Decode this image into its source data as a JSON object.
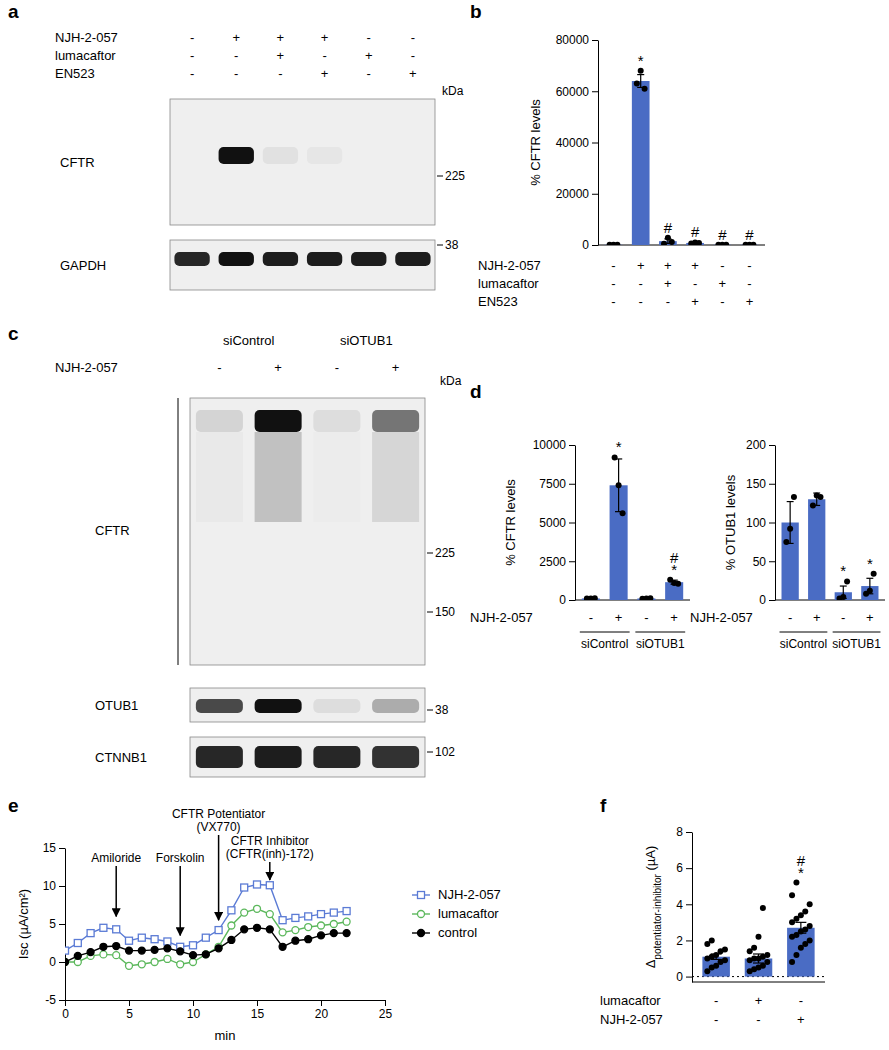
{
  "chart_data": [
    {
      "type": "blot",
      "panel": "a",
      "treatments": [
        {
          "name": "NJH-2-057",
          "signs": [
            "-",
            "+",
            "+",
            "+",
            "-",
            "-"
          ]
        },
        {
          "name": "lumacaftor",
          "signs": [
            "-",
            "-",
            "+",
            "-",
            "+",
            "-"
          ]
        },
        {
          "name": "EN523",
          "signs": [
            "-",
            "-",
            "-",
            "+",
            "-",
            "+"
          ]
        }
      ],
      "marker_unit": "kDa",
      "blots": [
        {
          "name": "CFTR",
          "intensities": [
            0,
            1,
            0.06,
            0.04,
            0,
            0
          ],
          "markers": [
            225
          ]
        },
        {
          "name": "GAPDH",
          "intensities": [
            0.9,
            1,
            0.95,
            0.95,
            0.95,
            0.95
          ],
          "markers": [
            38
          ]
        }
      ]
    },
    {
      "type": "bar",
      "panel": "b",
      "y_label": "% CFTR levels",
      "color": "#4a6cc4",
      "treatments": [
        {
          "name": "NJH-2-057",
          "signs": [
            "-",
            "+",
            "+",
            "+",
            "-",
            "-"
          ]
        },
        {
          "name": "lumacaftor",
          "signs": [
            "-",
            "-",
            "+",
            "-",
            "+",
            "-"
          ]
        },
        {
          "name": "EN523",
          "signs": [
            "-",
            "-",
            "-",
            "+",
            "-",
            "+"
          ]
        }
      ],
      "values": [
        100,
        64000,
        1500,
        800,
        100,
        100
      ],
      "errors": [
        50,
        2500,
        900,
        300,
        50,
        50
      ],
      "points": [
        [
          100,
          100,
          100
        ],
        [
          63000,
          68000,
          61000
        ],
        [
          500,
          2800,
          1200
        ],
        [
          600,
          1000,
          800
        ],
        [
          100,
          100,
          100
        ],
        [
          100,
          100,
          100
        ]
      ],
      "annotations": [
        null,
        [
          "*"
        ],
        [
          "#"
        ],
        [
          "#"
        ],
        [
          "#"
        ],
        [
          "#"
        ]
      ],
      "ylim": [
        0,
        80000
      ],
      "yticks": [
        0,
        20000,
        40000,
        60000,
        80000
      ]
    },
    {
      "type": "blot",
      "panel": "c",
      "groups": [
        "siControl",
        "siControl",
        "siOTUB1",
        "siOTUB1"
      ],
      "treatments": [
        {
          "name": "NJH-2-057",
          "signs": [
            "-",
            "+",
            "-",
            "+"
          ]
        }
      ],
      "marker_unit": "kDa",
      "blots": [
        {
          "name": "CFTR",
          "intensities": [
            0.12,
            1,
            0.08,
            0.55
          ],
          "markers": [
            225,
            150
          ]
        },
        {
          "name": "OTUB1",
          "intensities": [
            0.75,
            1,
            0.08,
            0.3
          ],
          "markers": [
            38
          ]
        },
        {
          "name": "CTNNB1",
          "intensities": [
            0.9,
            0.95,
            0.9,
            0.85
          ],
          "markers": [
            102
          ]
        }
      ]
    },
    {
      "type": "bar",
      "panel": "d",
      "y_label": "% CFTR levels",
      "color": "#4a6cc4",
      "treatments": [
        {
          "name": "NJH-2-057",
          "signs": [
            "-",
            "+",
            "-",
            "+"
          ]
        }
      ],
      "groups": [
        "siControl",
        "siControl",
        "siOTUB1",
        "siOTUB1"
      ],
      "values": [
        100,
        7400,
        100,
        1150
      ],
      "errors": [
        20,
        1700,
        20,
        130
      ],
      "points": [
        [
          90,
          100,
          110
        ],
        [
          9200,
          7400,
          5600
        ],
        [
          80,
          100,
          120
        ],
        [
          1300,
          1100,
          1050
        ]
      ],
      "annotations": [
        null,
        [
          "*"
        ],
        null,
        [
          "#",
          "*"
        ]
      ],
      "ylim": [
        0,
        10000
      ],
      "yticks": [
        0,
        2500,
        5000,
        7500,
        10000
      ]
    },
    {
      "type": "bar",
      "y_label": "% OTUB1 levels",
      "color": "#4a6cc4",
      "treatments": [
        {
          "name": "NJH-2-057",
          "signs": [
            "-",
            "+",
            "-",
            "+"
          ]
        }
      ],
      "groups": [
        "siControl",
        "siControl",
        "siOTUB1",
        "siOTUB1"
      ],
      "values": [
        100,
        130,
        10,
        18
      ],
      "errors": [
        27,
        8,
        8,
        10
      ],
      "points": [
        [
          75,
          92,
          133
        ],
        [
          122,
          135,
          133
        ],
        [
          2,
          4,
          24
        ],
        [
          8,
          12,
          34
        ]
      ],
      "annotations": [
        null,
        null,
        [
          "*"
        ],
        [
          "*"
        ]
      ],
      "ylim": [
        0,
        200
      ],
      "yticks": [
        0,
        50,
        100,
        150,
        200
      ]
    },
    {
      "type": "line",
      "panel": "e",
      "x_label": "min",
      "y_label": "Isc (µA/cm²)",
      "x": [
        0,
        1,
        2,
        3,
        4,
        5,
        6,
        7,
        8,
        9,
        10,
        11,
        12,
        13,
        14,
        15,
        16,
        17,
        18,
        19,
        20,
        21,
        22
      ],
      "series": [
        {
          "name": "NJH-2-057",
          "color": "#5b7bd5",
          "marker": "open-square",
          "values": [
            1.5,
            2.5,
            3.8,
            4.5,
            4.3,
            2.8,
            3.2,
            3.0,
            2.7,
            2.0,
            2.2,
            3.2,
            4.2,
            6.8,
            9.8,
            10.2,
            10.1,
            5.5,
            5.8,
            6.0,
            6.3,
            6.5,
            6.7
          ]
        },
        {
          "name": "lumacaftor",
          "color": "#5cb85c",
          "marker": "open-circle",
          "values": [
            0,
            0,
            0.8,
            1.0,
            0.9,
            -0.5,
            -0.3,
            0,
            0.4,
            -0.3,
            0,
            1.0,
            2.0,
            4.8,
            6.5,
            7.0,
            6.3,
            3.9,
            4.2,
            4.6,
            4.8,
            5.0,
            5.3
          ]
        },
        {
          "name": "control",
          "color": "#000000",
          "marker": "circle",
          "values": [
            0,
            0.8,
            1.3,
            2.0,
            2.1,
            1.5,
            1.5,
            1.6,
            1.8,
            1.4,
            0.9,
            1.0,
            1.8,
            2.9,
            4.3,
            4.5,
            4.3,
            2.0,
            2.8,
            3.0,
            3.5,
            3.8,
            3.8
          ]
        }
      ],
      "annotations": [
        {
          "text": [
            "Amiloride"
          ],
          "x": 4,
          "y": 6
        },
        {
          "text": [
            "Forskolin"
          ],
          "x": 9,
          "y": 3.5
        },
        {
          "text": [
            "CFTR Potentiator",
            "(VX770)"
          ],
          "x": 12,
          "y": 5.5
        },
        {
          "text": [
            "CFTR Inhibitor",
            "(CFTR(inh)-172)"
          ],
          "x": 16,
          "y": 10.8
        }
      ],
      "legend": "right",
      "xlim": [
        0,
        25
      ],
      "xticks": [
        0,
        5,
        10,
        15,
        20,
        25
      ],
      "ylim": [
        -5,
        15
      ],
      "yticks": [
        -5,
        0,
        5,
        10,
        15
      ]
    },
    {
      "type": "bar",
      "panel": "f",
      "y_label": [
        "Δ",
        "potentiator-inhibitor",
        " (µA)"
      ],
      "color": "#4a6cc4",
      "treatments": [
        {
          "name": "lumacaftor",
          "signs": [
            "-",
            "+",
            "-"
          ]
        },
        {
          "name": "NJH-2-057",
          "signs": [
            "-",
            "-",
            "+"
          ]
        }
      ],
      "values": [
        1.1,
        1.0,
        2.7
      ],
      "errors": [
        0.15,
        0.25,
        0.3
      ],
      "points": [
        [
          0.3,
          0.5,
          0.6,
          0.8,
          0.9,
          1.0,
          1.1,
          1.2,
          1.4,
          1.5,
          1.8,
          2.0
        ],
        [
          0.3,
          0.4,
          0.5,
          0.6,
          0.8,
          0.9,
          1.0,
          1.0,
          1.1,
          1.2,
          1.4,
          1.6,
          2.2,
          3.8
        ],
        [
          0.8,
          1.2,
          1.6,
          1.8,
          2.0,
          2.2,
          2.3,
          2.5,
          2.6,
          2.8,
          3.0,
          3.2,
          3.4,
          3.6,
          4.0,
          4.5,
          5.2
        ]
      ],
      "annotations": [
        null,
        null,
        [
          "#",
          "*"
        ]
      ],
      "ylim": [
        -0.3,
        8
      ],
      "yticks": [
        0,
        2,
        4,
        6,
        8
      ]
    }
  ]
}
